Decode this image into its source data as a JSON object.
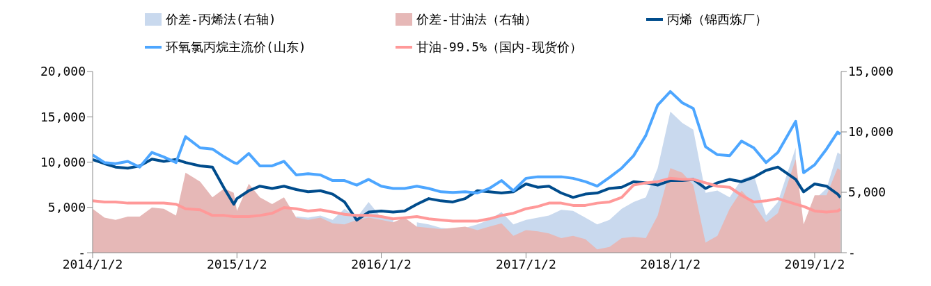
{
  "chart_data": {
    "type": "line",
    "legend": "top",
    "x": [
      "2014-01-02",
      "2014-02-01",
      "2014-03-01",
      "2014-04-01",
      "2014-05-01",
      "2014-06-01",
      "2014-07-01",
      "2014-08-01",
      "2014-08-25",
      "2014-10-01",
      "2014-11-01",
      "2014-12-01",
      "2014-12-25",
      "2015-01-02",
      "2015-02-01",
      "2015-03-01",
      "2015-04-01",
      "2015-05-01",
      "2015-06-01",
      "2015-07-01",
      "2015-08-01",
      "2015-09-01",
      "2015-10-01",
      "2015-11-01",
      "2015-12-01",
      "2016-01-02",
      "2016-02-01",
      "2016-03-01",
      "2016-04-01",
      "2016-05-01",
      "2016-06-01",
      "2016-07-01",
      "2016-08-01",
      "2016-09-01",
      "2016-10-01",
      "2016-11-01",
      "2016-12-01",
      "2017-01-02",
      "2017-02-01",
      "2017-03-01",
      "2017-04-01",
      "2017-05-01",
      "2017-06-01",
      "2017-07-01",
      "2017-08-01",
      "2017-09-01",
      "2017-10-01",
      "2017-11-01",
      "2017-12-01",
      "2018-01-02",
      "2018-02-01",
      "2018-03-01",
      "2018-04-01",
      "2018-05-01",
      "2018-06-01",
      "2018-07-01",
      "2018-08-01",
      "2018-09-01",
      "2018-10-01",
      "2018-11-15",
      "2018-12-05",
      "2019-01-02",
      "2019-02-01",
      "2019-03-01",
      "2019-03-08"
    ],
    "xlim": [
      "2014-01-02",
      "2019-03-10"
    ],
    "xticks": [
      {
        "value": "2014-01-02",
        "label": "2014/1/2"
      },
      {
        "value": "2015-01-02",
        "label": "2015/1/2"
      },
      {
        "value": "2016-01-02",
        "label": "2016/1/2"
      },
      {
        "value": "2017-01-02",
        "label": "2017/1/2"
      },
      {
        "value": "2018-01-02",
        "label": "2018/1/2"
      },
      {
        "value": "2019-01-02",
        "label": "2019/1/2"
      }
    ],
    "ylim": [
      0,
      20000
    ],
    "yticks": [
      {
        "value": 0,
        "label": "-"
      },
      {
        "value": 5000,
        "label": "5,000"
      },
      {
        "value": 10000,
        "label": "10,000"
      },
      {
        "value": 15000,
        "label": "15,000"
      },
      {
        "value": 20000,
        "label": "20,000"
      }
    ],
    "y2lim": [
      0,
      15000
    ],
    "y2ticks": [
      {
        "value": 0,
        "label": "-"
      },
      {
        "value": 5000,
        "label": "5,000"
      },
      {
        "value": 10000,
        "label": "10,000"
      },
      {
        "value": 15000,
        "label": "15,000"
      }
    ],
    "series": [
      {
        "name": "价差-丙烯法(右轴)",
        "type": "area",
        "axis": "y2",
        "color": "#c9d9ee",
        "values": [
          null,
          null,
          null,
          null,
          null,
          null,
          null,
          null,
          null,
          null,
          null,
          null,
          null,
          null,
          null,
          null,
          null,
          null,
          3000,
          2900,
          3080,
          2710,
          3640,
          2900,
          4200,
          2900,
          2710,
          null,
          2520,
          2340,
          2050,
          1960,
          2050,
          2340,
          2710,
          3360,
          2340,
          2710,
          2900,
          3080,
          3550,
          3460,
          2900,
          2340,
          2710,
          3640,
          4200,
          4580,
          7000,
          11680,
          10740,
          10180,
          4950,
          5140,
          4580,
          6070,
          6440,
          3080,
          4200,
          8690,
          null,
          4390,
          5320,
          8310,
          8130
        ]
      },
      {
        "name": "价差-甘油法（右轴）",
        "type": "area",
        "axis": "y2",
        "color": "#e6b8b7",
        "values": [
          3640,
          2900,
          2710,
          2990,
          2990,
          3740,
          3640,
          3080,
          6630,
          5880,
          4580,
          5320,
          4950,
          3460,
          5700,
          4580,
          4020,
          4580,
          2900,
          2710,
          2900,
          2430,
          2340,
          2710,
          2900,
          2710,
          2520,
          2900,
          2150,
          2050,
          1960,
          2050,
          2150,
          1870,
          2150,
          2430,
          1400,
          1870,
          1770,
          1590,
          1210,
          1400,
          1120,
          280,
          470,
          1210,
          1310,
          1210,
          3080,
          7000,
          6630,
          5600,
          840,
          1400,
          3640,
          5140,
          4020,
          2520,
          3270,
          7750,
          2340,
          4760,
          4760,
          7000,
          6820
        ]
      },
      {
        "name": "丙烯（锦西炼厂）",
        "color": "#004c8c",
        "values": [
          10280,
          9830,
          9450,
          9330,
          9580,
          10330,
          10080,
          10280,
          9950,
          9580,
          9450,
          7090,
          5350,
          5970,
          6840,
          7340,
          7090,
          7340,
          6970,
          6720,
          6840,
          6470,
          5600,
          3600,
          4480,
          4600,
          4480,
          4600,
          5350,
          5970,
          5720,
          5600,
          5970,
          6840,
          6720,
          6590,
          6720,
          7590,
          7220,
          7340,
          6590,
          6100,
          6470,
          6590,
          7090,
          7220,
          7840,
          7710,
          7460,
          7960,
          7960,
          8090,
          7090,
          7710,
          8090,
          7840,
          8330,
          9080,
          9450,
          8090,
          6720,
          7590,
          7340,
          6470,
          6100
        ]
      },
      {
        "name": "环氧氯丙烷主流价(山东)",
        "color": "#4da6ff",
        "values": [
          10800,
          9950,
          9830,
          10080,
          9450,
          11070,
          10570,
          9950,
          12810,
          11570,
          11440,
          10570,
          9950,
          9830,
          10950,
          9580,
          9580,
          10080,
          8580,
          8710,
          8580,
          7960,
          7960,
          7460,
          8090,
          7340,
          7090,
          7090,
          7340,
          7090,
          6720,
          6640,
          6720,
          6590,
          7090,
          7960,
          6840,
          8210,
          8380,
          8380,
          8380,
          8210,
          7840,
          7340,
          8300,
          9330,
          10700,
          12940,
          16300,
          17790,
          16550,
          15920,
          11690,
          10820,
          10700,
          12320,
          11570,
          9950,
          11070,
          14500,
          8830,
          9700,
          11440,
          13310,
          13100
        ]
      },
      {
        "name": "甘油-99.5%（国内-现货价）",
        "color": "#ff9999",
        "values": [
          5720,
          5600,
          5600,
          5470,
          5470,
          5470,
          5470,
          5350,
          4850,
          4730,
          4110,
          4110,
          3980,
          3980,
          3980,
          4110,
          4350,
          4980,
          4850,
          4600,
          4730,
          4480,
          4230,
          4110,
          4110,
          3980,
          3730,
          3860,
          3980,
          3730,
          3610,
          3480,
          3480,
          3480,
          3730,
          4110,
          4350,
          4850,
          5100,
          5470,
          5470,
          5220,
          5220,
          5470,
          5600,
          6100,
          7460,
          7710,
          7840,
          8210,
          8090,
          8090,
          7710,
          7340,
          7220,
          6340,
          5600,
          5720,
          5970,
          5350,
          5100,
          4600,
          4480,
          4600,
          4800
        ]
      }
    ]
  }
}
